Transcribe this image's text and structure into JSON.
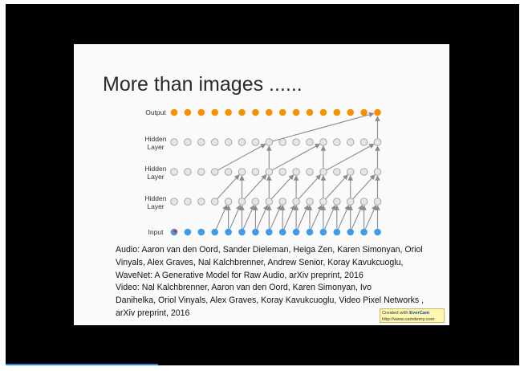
{
  "slide": {
    "title": "More than images ......",
    "labels": {
      "output": "Output",
      "hidden1": "Hidden\nLayer",
      "hidden2": "Hidden\nLayer",
      "hidden3": "Hidden\nLayer",
      "input": "Input"
    },
    "audio_ref": "Audio: Aaron van den Oord, Sander Dieleman, Heiga Zen, Karen Simonyan, Oriol\nVinyals, Alex Graves, Nal Kalchbrenner, Andrew Senior, Koray Kavukcuoglu,\nWaveNet: A Generative Model for Raw Audio, arXiv preprint, 2016",
    "video_ref": "Video: Nal Kalchbrenner, Aaron van den Oord, Karen Simonyan, Ivo\nDanihelka, Oriol Vinyals, Alex Graves, Koray Kavukcuoglu, Video Pixel Networks ,\narXiv preprint, 2016"
  },
  "watermark": {
    "line1_prefix": "Created with ",
    "brand": "EverCam",
    "line2": "http://www.camdemy.com"
  },
  "colors": {
    "output_node": "#f39200",
    "input_node": "#3d9be9",
    "hidden_node": "#e6e6e6",
    "highlight_node": "#e03030",
    "edge": "#8a8a8a"
  },
  "diagram": {
    "nodes_per_row": 16,
    "layers": [
      "input",
      "hidden",
      "hidden",
      "hidden",
      "output"
    ],
    "dilations": [
      1,
      2,
      4,
      8
    ]
  }
}
